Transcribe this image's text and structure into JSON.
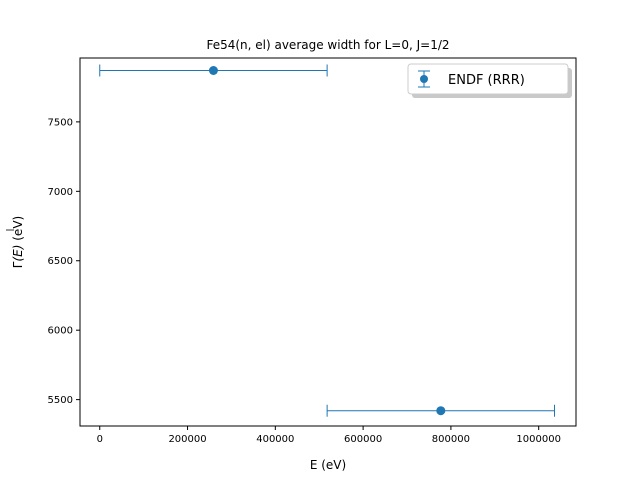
{
  "chart_data": {
    "type": "scatter",
    "title": "Fe54(n, el) average width for L=0, J=1/2",
    "xlabel": "E (eV)",
    "ylabel_main": "Γ",
    "ylabel_arg": "(E)",
    "ylabel_unit": " (eV)",
    "xlim": [
      -45000,
      1085000
    ],
    "ylim": [
      5310,
      7960
    ],
    "xticks": [
      {
        "value": 0,
        "label": "0"
      },
      {
        "value": 200000,
        "label": "200000"
      },
      {
        "value": 400000,
        "label": "400000"
      },
      {
        "value": 600000,
        "label": "600000"
      },
      {
        "value": 800000,
        "label": "800000"
      },
      {
        "value": 1000000,
        "label": "1000000"
      }
    ],
    "yticks": [
      {
        "value": 5500,
        "label": "5500"
      },
      {
        "value": 6000,
        "label": "6000"
      },
      {
        "value": 6500,
        "label": "6500"
      },
      {
        "value": 7000,
        "label": "7000"
      },
      {
        "value": 7500,
        "label": "7500"
      }
    ],
    "grid": false,
    "legend_position": "top-right",
    "series": [
      {
        "name": "ENDF (RRR)",
        "color": "#1f77b4",
        "points": [
          {
            "x": 259000,
            "y": 7870,
            "xerr_low": 0,
            "xerr_high": 518000
          },
          {
            "x": 777000,
            "y": 5420,
            "xerr_low": 518000,
            "xerr_high": 1036000
          }
        ]
      }
    ]
  }
}
